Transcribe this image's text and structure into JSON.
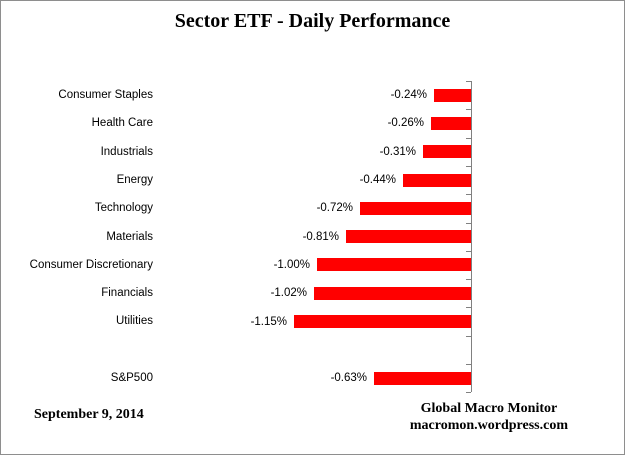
{
  "chart_data": {
    "type": "bar",
    "orientation": "horizontal",
    "title": "Sector ETF - Daily Performance",
    "categories": [
      "Consumer Staples",
      "Health Care",
      "Industrials",
      "Energy",
      "Technology",
      "Materials",
      "Consumer Discretionary",
      "Financials",
      "Utilities",
      "",
      "S&P500"
    ],
    "values": [
      -0.24,
      -0.26,
      -0.31,
      -0.44,
      -0.72,
      -0.81,
      -1.0,
      -1.02,
      -1.15,
      null,
      -0.63
    ],
    "labels": [
      "-0.24%",
      "-0.26%",
      "-0.31%",
      "-0.44%",
      "-0.72%",
      "-0.81%",
      "-1.00%",
      "-1.02%",
      "-1.15%",
      "",
      "-0.63%"
    ],
    "bar_color": "#FF0000",
    "axis_color": "#808080",
    "grid": "off",
    "legend": "none",
    "value_labels_position": "left-of-bar"
  },
  "footer": {
    "date": "September 9, 2014",
    "source_line1": "Global Macro Monitor",
    "source_line2": "macromon.wordpress.com"
  }
}
